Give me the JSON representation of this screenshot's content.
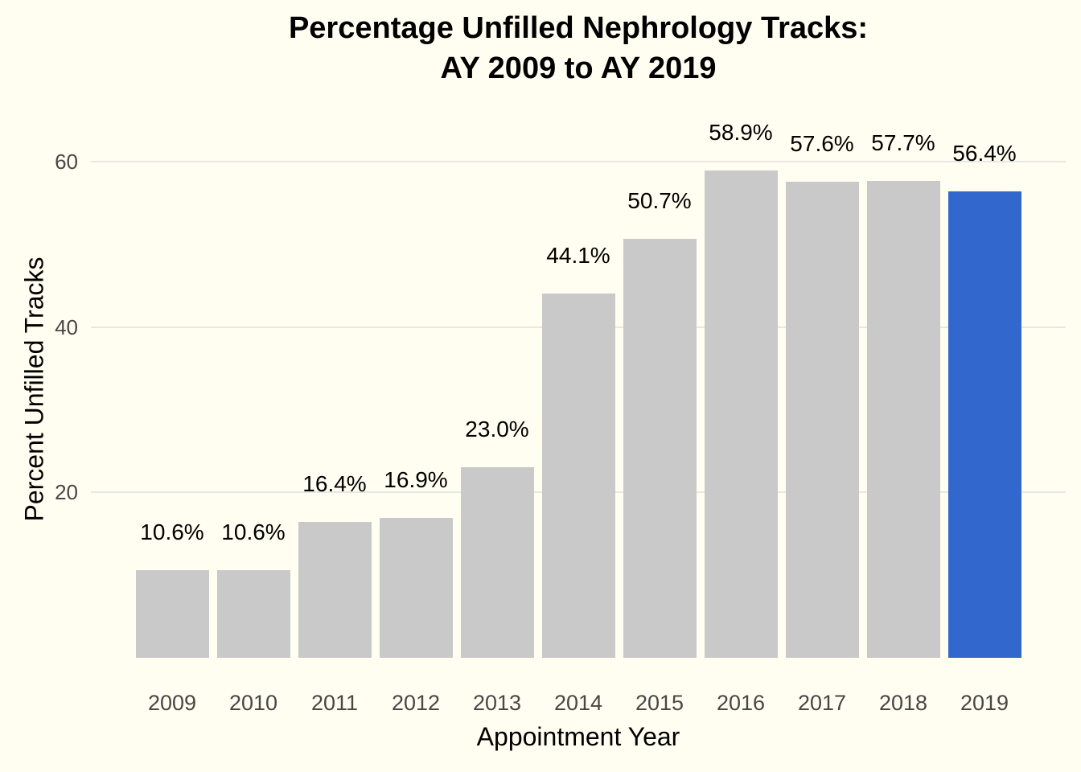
{
  "chart_data": {
    "type": "bar",
    "title": "Percentage Unfilled Nephrology Tracks: AY 2009 to AY 2019",
    "title_lines": [
      "Percentage Unfilled Nephrology Tracks:",
      "AY 2009 to AY 2019"
    ],
    "xlabel": "Appointment Year",
    "ylabel": "Percent Unfilled Tracks",
    "categories": [
      "2009",
      "2010",
      "2011",
      "2012",
      "2013",
      "2014",
      "2015",
      "2016",
      "2017",
      "2018",
      "2019"
    ],
    "values": [
      10.6,
      10.6,
      16.4,
      16.9,
      23.0,
      44.1,
      50.7,
      58.9,
      57.6,
      57.7,
      56.4
    ],
    "bar_labels": [
      "10.6%",
      "10.6%",
      "16.4%",
      "16.9%",
      "23.0%",
      "44.1%",
      "50.7%",
      "58.9%",
      "57.6%",
      "57.7%",
      "56.4%"
    ],
    "yticks": [
      20,
      40,
      60
    ],
    "ylim": [
      0,
      65
    ],
    "grid": "horizontal-major-only",
    "legend": "none",
    "highlight_category": "2019",
    "colors": {
      "background": "#FFFEF0",
      "bar_default": "#C9C9C9",
      "bar_highlight": "#3267CD",
      "gridline": "#E7E7E4",
      "tick_label": "#474747",
      "text": "#000000"
    }
  }
}
